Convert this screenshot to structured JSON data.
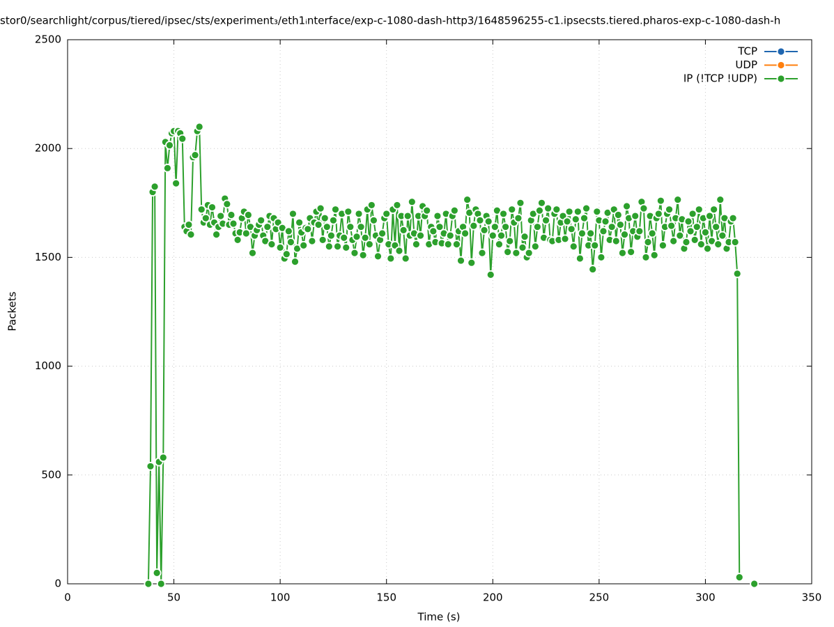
{
  "chart_data": {
    "type": "line",
    "title": "stor0/searchlight/corpus/tiered/ipsec/sts/experiment₃/eth1ᵢnterface/exp-c-1080-dash-http3/1648596255-c1.ipsecsts.tiered.pharos-exp-c-1080-dash-h",
    "xlabel": "Time (s)",
    "ylabel": "Packets",
    "xlim": [
      0,
      350
    ],
    "xticks": [
      0,
      50,
      100,
      150,
      200,
      250,
      300,
      350
    ],
    "ylim": [
      0,
      2500
    ],
    "yticks": [
      0,
      500,
      1000,
      1500,
      2000,
      2500
    ],
    "grid": true,
    "legend": "upper right",
    "series": [
      {
        "name": "TCP",
        "color": "#1f66b0",
        "x": [],
        "values": []
      },
      {
        "name": "UDP",
        "color": "#ff7f0e",
        "x": [],
        "values": []
      },
      {
        "name": "IP (!TCP  !UDP)",
        "color": "#2ca02c",
        "x": [
          38,
          39,
          40,
          41,
          42,
          43,
          44,
          45,
          46,
          47,
          48,
          49,
          50,
          51,
          52,
          53,
          54,
          55,
          56,
          57,
          58,
          59,
          60,
          61,
          62,
          63,
          64,
          65,
          66,
          67,
          68,
          69,
          70,
          71,
          72,
          73,
          74,
          75,
          76,
          77,
          78,
          79,
          80,
          81,
          82,
          83,
          84,
          85,
          86,
          87,
          88,
          89,
          90,
          91,
          92,
          93,
          94,
          95,
          96,
          97,
          98,
          99,
          100,
          101,
          102,
          103,
          104,
          105,
          106,
          107,
          108,
          109,
          110,
          111,
          112,
          113,
          114,
          115,
          116,
          117,
          118,
          119,
          120,
          121,
          122,
          123,
          124,
          125,
          126,
          127,
          128,
          129,
          130,
          131,
          132,
          133,
          134,
          135,
          136,
          137,
          138,
          139,
          140,
          141,
          142,
          143,
          144,
          145,
          146,
          147,
          148,
          149,
          150,
          151,
          152,
          153,
          154,
          155,
          156,
          157,
          158,
          159,
          160,
          161,
          162,
          163,
          164,
          165,
          166,
          167,
          168,
          169,
          170,
          171,
          172,
          173,
          174,
          175,
          176,
          177,
          178,
          179,
          180,
          181,
          182,
          183,
          184,
          185,
          186,
          187,
          188,
          189,
          190,
          191,
          192,
          193,
          194,
          195,
          196,
          197,
          198,
          199,
          200,
          201,
          202,
          203,
          204,
          205,
          206,
          207,
          208,
          209,
          210,
          211,
          212,
          213,
          214,
          215,
          216,
          217,
          218,
          219,
          220,
          221,
          222,
          223,
          224,
          225,
          226,
          227,
          228,
          229,
          230,
          231,
          232,
          233,
          234,
          235,
          236,
          237,
          238,
          239,
          240,
          241,
          242,
          243,
          244,
          245,
          246,
          247,
          248,
          249,
          250,
          251,
          252,
          253,
          254,
          255,
          256,
          257,
          258,
          259,
          260,
          261,
          262,
          263,
          264,
          265,
          266,
          267,
          268,
          269,
          270,
          271,
          272,
          273,
          274,
          275,
          276,
          277,
          278,
          279,
          280,
          281,
          282,
          283,
          284,
          285,
          286,
          287,
          288,
          289,
          290,
          291,
          292,
          293,
          294,
          295,
          296,
          297,
          298,
          299,
          300,
          301,
          302,
          303,
          304,
          305,
          306,
          307,
          308,
          309,
          310,
          311,
          312,
          313,
          314,
          315,
          316,
          317,
          323
        ],
        "values": [
          0,
          540,
          1800,
          1825,
          50,
          560,
          0,
          580,
          2030,
          1910,
          2015,
          2070,
          2080,
          1840,
          2080,
          2070,
          2045,
          1640,
          1620,
          1650,
          1605,
          1960,
          1970,
          2080,
          2100,
          1720,
          1660,
          1680,
          1740,
          1650,
          1730,
          1660,
          1605,
          1640,
          1690,
          1655,
          1770,
          1745,
          1650,
          1695,
          1655,
          1610,
          1580,
          1615,
          1680,
          1710,
          1610,
          1695,
          1640,
          1520,
          1600,
          1625,
          1650,
          1670,
          1600,
          1575,
          1640,
          1690,
          1560,
          1680,
          1630,
          1660,
          1545,
          1635,
          1495,
          1515,
          1620,
          1570,
          1700,
          1480,
          1540,
          1660,
          1615,
          1555,
          1635,
          1630,
          1680,
          1575,
          1660,
          1710,
          1650,
          1725,
          1580,
          1680,
          1640,
          1550,
          1600,
          1670,
          1720,
          1550,
          1600,
          1700,
          1590,
          1545,
          1710,
          1640,
          1580,
          1520,
          1595,
          1700,
          1640,
          1510,
          1590,
          1720,
          1560,
          1740,
          1670,
          1600,
          1505,
          1580,
          1610,
          1680,
          1700,
          1560,
          1495,
          1720,
          1555,
          1740,
          1530,
          1690,
          1625,
          1495,
          1690,
          1600,
          1755,
          1610,
          1560,
          1690,
          1600,
          1735,
          1690,
          1715,
          1560,
          1640,
          1620,
          1570,
          1690,
          1640,
          1565,
          1610,
          1700,
          1560,
          1600,
          1690,
          1715,
          1560,
          1620,
          1485,
          1640,
          1610,
          1765,
          1705,
          1475,
          1645,
          1720,
          1700,
          1670,
          1520,
          1625,
          1690,
          1665,
          1420,
          1600,
          1640,
          1715,
          1560,
          1600,
          1700,
          1640,
          1525,
          1575,
          1720,
          1660,
          1520,
          1680,
          1750,
          1545,
          1595,
          1500,
          1520,
          1670,
          1700,
          1550,
          1640,
          1715,
          1750,
          1590,
          1670,
          1725,
          1580,
          1575,
          1700,
          1720,
          1580,
          1660,
          1690,
          1585,
          1665,
          1710,
          1630,
          1550,
          1675,
          1710,
          1495,
          1610,
          1680,
          1725,
          1555,
          1610,
          1445,
          1555,
          1710,
          1670,
          1500,
          1620,
          1665,
          1705,
          1580,
          1640,
          1720,
          1575,
          1695,
          1650,
          1520,
          1605,
          1735,
          1680,
          1525,
          1620,
          1690,
          1595,
          1620,
          1755,
          1725,
          1500,
          1570,
          1690,
          1610,
          1510,
          1680,
          1700,
          1760,
          1555,
          1640,
          1700,
          1720,
          1645,
          1575,
          1680,
          1765,
          1600,
          1675,
          1540,
          1570,
          1665,
          1620,
          1700,
          1580,
          1640,
          1720,
          1560,
          1680,
          1615,
          1540,
          1690,
          1575,
          1720,
          1640,
          1560,
          1765,
          1600,
          1680,
          1540,
          1570,
          1665,
          1680,
          1570,
          1425,
          30,
          null,
          0
        ]
      }
    ]
  }
}
